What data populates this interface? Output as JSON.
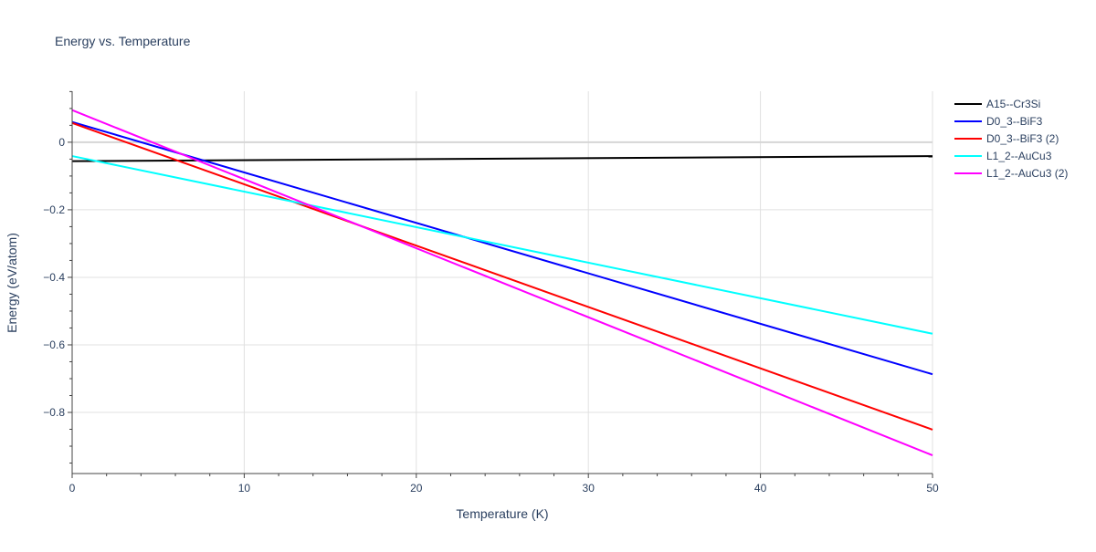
{
  "chart_data": {
    "type": "line",
    "title": "Energy vs. Temperature",
    "xlabel": "Temperature (K)",
    "ylabel": "Energy (eV/atom)",
    "xlim": [
      0,
      50
    ],
    "ylim": [
      -0.981,
      0.151
    ],
    "xticks": [
      0,
      10,
      20,
      30,
      40,
      50
    ],
    "yticks": [
      0,
      -0.2,
      -0.4,
      -0.6,
      -0.8
    ],
    "ytick_labels": [
      "0",
      "−0.2",
      "−0.4",
      "−0.6",
      "−0.8"
    ],
    "grid": true,
    "legend_position": "right",
    "series": [
      {
        "name": "A15--Cr3Si",
        "color": "#000000",
        "x": [
          0,
          50
        ],
        "y": [
          -0.056,
          -0.041
        ]
      },
      {
        "name": "D0_3--BiF3",
        "color": "#0000ff",
        "x": [
          0,
          50
        ],
        "y": [
          0.06,
          -0.687
        ]
      },
      {
        "name": "D0_3--BiF3 (2)",
        "color": "#ff0000",
        "x": [
          0,
          50
        ],
        "y": [
          0.057,
          -0.851
        ]
      },
      {
        "name": "L1_2--AuCu3",
        "color": "#00ffff",
        "x": [
          0,
          50
        ],
        "y": [
          -0.041,
          -0.567
        ]
      },
      {
        "name": "L1_2--AuCu3 (2)",
        "color": "#ff00ff",
        "x": [
          0,
          50
        ],
        "y": [
          0.095,
          -0.927
        ]
      }
    ]
  }
}
